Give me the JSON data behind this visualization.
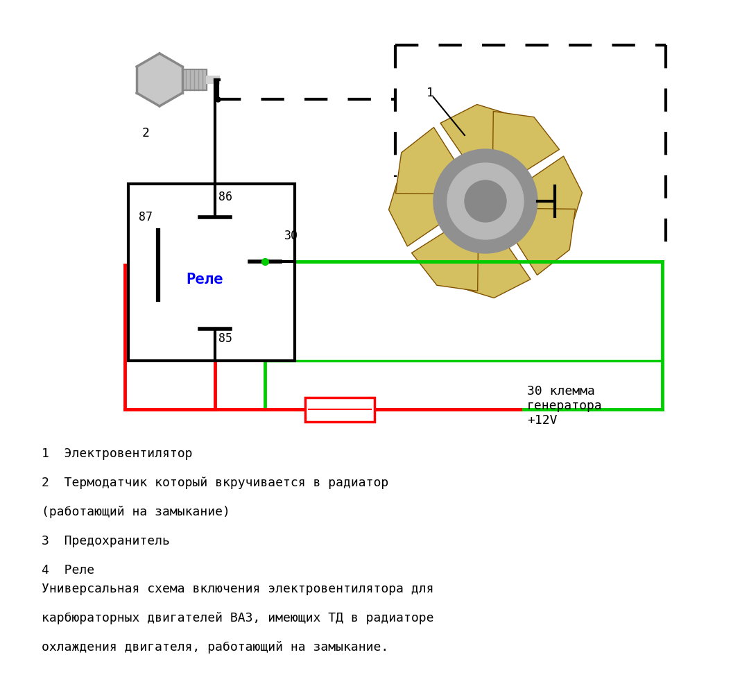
{
  "bg_color": "#ffffff",
  "relay_label": "Реле",
  "relay_label_color": "#0000ff",
  "line1_legend": "1  Электровентилятор",
  "line2_legend": "2  Термодатчик который вкручивается в радиатор",
  "line3_legend": "(работающий на замыкание)",
  "line4_legend": "3  Предохранитель",
  "line5_legend": "4  Реле",
  "desc_line1": "Универсальная схема включения электровентилятора для",
  "desc_line2": "карбюраторных двигателей ВАЗ, имеющих ТД в радиаторе",
  "desc_line3": "охлаждения двигателя, работающий на замыкание.",
  "fuse_label": "30 клемма\nгенератора\n+12V"
}
